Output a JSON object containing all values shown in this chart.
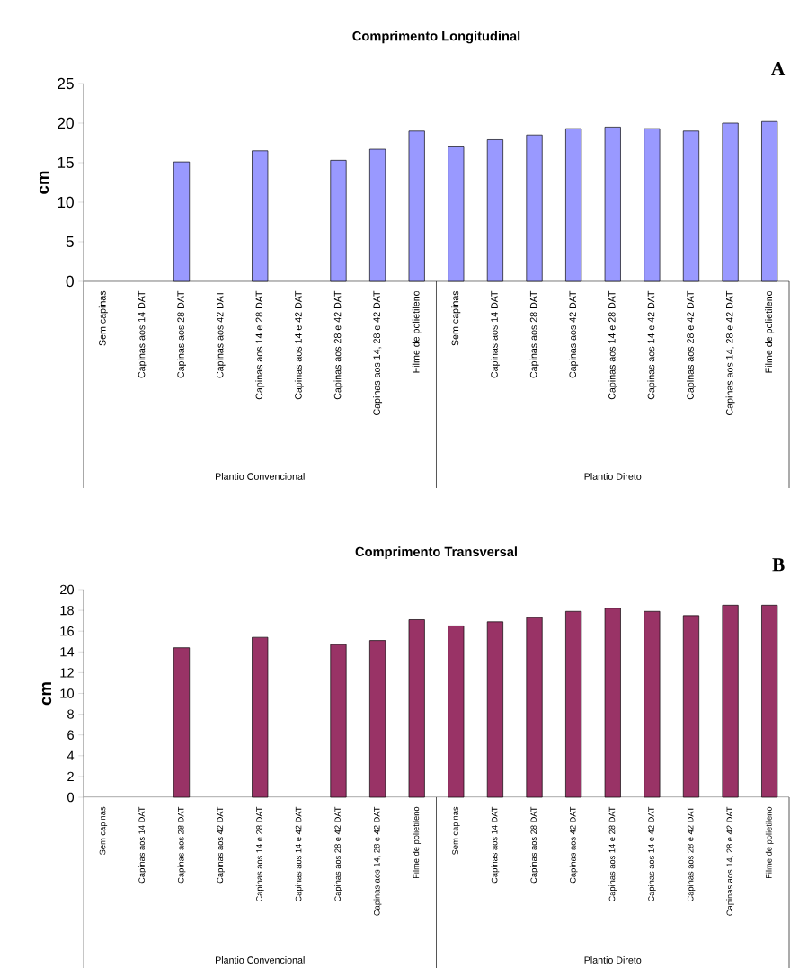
{
  "chart_data": [
    {
      "type": "bar",
      "title": "Comprimento Longitudinal",
      "ylabel": "cm",
      "categories": [
        "Sem capinas",
        "Capinas aos 14 DAT",
        "Capinas aos 28 DAT",
        "Capinas aos 42 DAT",
        "Capinas aos 14 e 28 DAT",
        "Capinas aos 14 e 42 DAT",
        "Capinas aos 28 e 42 DAT",
        "Capinas aos 14, 28 e 42 DAT",
        "Filme de polietileno",
        "Sem capinas",
        "Capinas aos 14 DAT",
        "Capinas aos 28 DAT",
        "Capinas aos 42 DAT",
        "Capinas aos 14 e 28 DAT",
        "Capinas aos 14 e 42 DAT",
        "Capinas aos 28 e 42 DAT",
        "Capinas aos 14, 28 e 42 DAT",
        "Filme de polietileno"
      ],
      "values": [
        null,
        null,
        15.1,
        null,
        16.5,
        null,
        15.3,
        16.7,
        19.0,
        17.1,
        17.9,
        18.5,
        19.3,
        19.5,
        19.3,
        19.0,
        20.0,
        20.2
      ],
      "color": "#9999ff",
      "ylim": [
        0,
        25
      ],
      "yticks": [
        0,
        5,
        10,
        15,
        20,
        25
      ],
      "annotations": [
        "A",
        "Plantio Convencional",
        "Plantio Direto"
      ]
    },
    {
      "type": "bar",
      "title": "Comprimento Transversal",
      "ylabel": "cm",
      "categories": [
        "Sem capinas",
        "Capinas aos 14 DAT",
        "Capinas aos 28 DAT",
        "Capinas aos 42 DAT",
        "Capinas aos 14 e 28 DAT",
        "Capinas aos 14 e 42 DAT",
        "Capinas aos 28 e 42 DAT",
        "Capinas aos 14, 28 e 42 DAT",
        "Filme de polietileno",
        "Sem capinas",
        "Capinas aos 14 DAT",
        "Capinas aos 28 DAT",
        "Capinas aos 42 DAT",
        "Capinas aos 14 e 28 DAT",
        "Capinas aos 14 e 42 DAT",
        "Capinas aos 28 e 42 DAT",
        "Capinas aos 14, 28 e 42 DAT",
        "Filme de polietileno"
      ],
      "values": [
        null,
        null,
        14.4,
        null,
        15.4,
        null,
        14.7,
        15.1,
        17.1,
        16.5,
        16.9,
        17.3,
        17.9,
        18.2,
        17.9,
        17.5,
        18.5,
        18.5
      ],
      "color": "#993366",
      "ylim": [
        0,
        20
      ],
      "yticks": [
        0,
        2,
        4,
        6,
        8,
        10,
        12,
        14,
        16,
        18,
        20
      ],
      "annotations": [
        "B",
        "Plantio Convencional",
        "Plantio Direto"
      ]
    }
  ]
}
